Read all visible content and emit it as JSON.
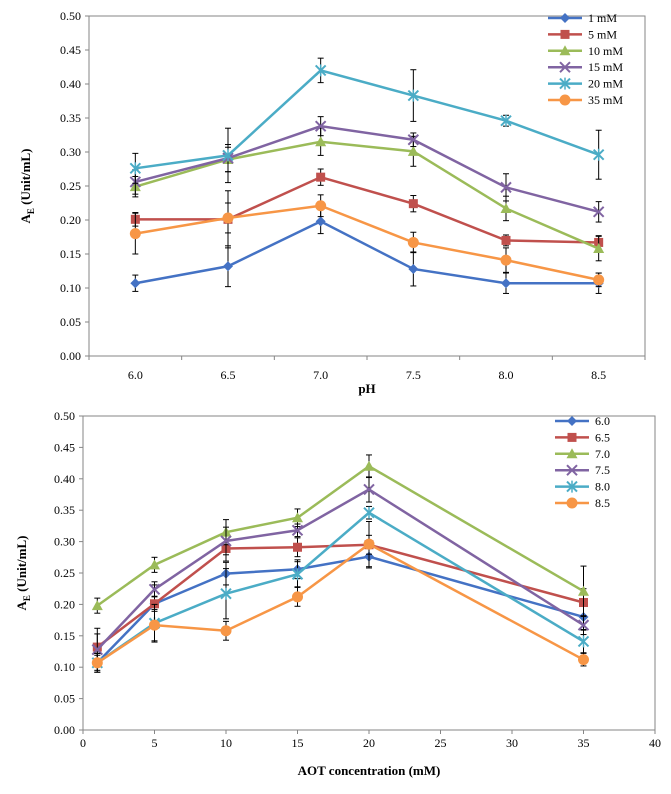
{
  "chart_data": [
    {
      "type": "line",
      "x": [
        6.0,
        6.5,
        7.0,
        7.5,
        8.0,
        8.5
      ],
      "x_tick_labels": [
        "6.0",
        "6.5",
        "7.0",
        "7.5",
        "8.0",
        "8.5"
      ],
      "xlabel": "pH",
      "ylabel_main": "A",
      "ylabel_sub": "E",
      "ylabel_rest": " (Unit/mL)",
      "ylim": [
        0,
        0.5
      ],
      "y_tick_labels": [
        "0.00",
        "0.05",
        "0.10",
        "0.15",
        "0.20",
        "0.25",
        "0.30",
        "0.35",
        "0.40",
        "0.45",
        "0.50"
      ],
      "legend_position": "top-right",
      "grid": false,
      "series": [
        {
          "name": "1 mM",
          "color": "#4472C4",
          "marker": "diamond",
          "values": [
            0.107,
            0.132,
            0.198,
            0.128,
            0.107,
            0.107
          ],
          "errors": [
            0.012,
            0.03,
            0.018,
            0.025,
            0.015,
            0.015
          ]
        },
        {
          "name": "5 mM",
          "color": "#C0504D",
          "marker": "square",
          "values": [
            0.201,
            0.201,
            0.263,
            0.224,
            0.17,
            0.167
          ],
          "errors": [
            0.01,
            0.042,
            0.012,
            0.012,
            0.008,
            0.01
          ]
        },
        {
          "name": "10 mM",
          "color": "#9BBB59",
          "marker": "triangle",
          "values": [
            0.249,
            0.289,
            0.315,
            0.301,
            0.217,
            0.158
          ],
          "errors": [
            0.015,
            0.018,
            0.02,
            0.022,
            0.018,
            0.018
          ]
        },
        {
          "name": "15 mM",
          "color": "#8064A2",
          "marker": "x",
          "values": [
            0.256,
            0.291,
            0.338,
            0.318,
            0.248,
            0.212
          ],
          "errors": [
            0.018,
            0.02,
            0.014,
            0.01,
            0.02,
            0.015
          ]
        },
        {
          "name": "20 mM",
          "color": "#4BACC6",
          "marker": "star",
          "values": [
            0.276,
            0.295,
            0.42,
            0.383,
            0.346,
            0.296
          ],
          "errors": [
            0.022,
            0.04,
            0.018,
            0.038,
            0.008,
            0.036
          ]
        },
        {
          "name": "35 mM",
          "color": "#F79646",
          "marker": "circle",
          "values": [
            0.18,
            0.203,
            0.221,
            0.167,
            0.141,
            0.112
          ],
          "errors": [
            0.03,
            0.022,
            0.016,
            0.015,
            0.018,
            0.01
          ]
        }
      ]
    },
    {
      "type": "line",
      "x": [
        1,
        5,
        10,
        15,
        20,
        35
      ],
      "xlim": [
        0,
        40
      ],
      "x_tick_labels": [
        "0",
        "5",
        "10",
        "15",
        "20",
        "25",
        "30",
        "35",
        "40"
      ],
      "xlabel": "AOT concentration (mM)",
      "ylabel_main": "A",
      "ylabel_sub": "E",
      "ylabel_rest": " (Unit/mL)",
      "ylim": [
        0,
        0.5
      ],
      "y_tick_labels": [
        "0.00",
        "0.05",
        "0.10",
        "0.15",
        "0.20",
        "0.25",
        "0.30",
        "0.35",
        "0.40",
        "0.45",
        "0.50"
      ],
      "legend_position": "top-right",
      "grid": false,
      "series": [
        {
          "name": "6.0",
          "color": "#4472C4",
          "marker": "diamond",
          "values": [
            0.107,
            0.201,
            0.249,
            0.256,
            0.276,
            0.18
          ],
          "errors": [
            0.012,
            0.012,
            0.018,
            0.015,
            0.018,
            0.02
          ]
        },
        {
          "name": "6.5",
          "color": "#C0504D",
          "marker": "square",
          "values": [
            0.132,
            0.201,
            0.289,
            0.291,
            0.295,
            0.203
          ],
          "errors": [
            0.03,
            0.03,
            0.02,
            0.015,
            0.015,
            0.022
          ]
        },
        {
          "name": "7.0",
          "color": "#9BBB59",
          "marker": "triangle",
          "values": [
            0.198,
            0.263,
            0.315,
            0.338,
            0.42,
            0.221
          ],
          "errors": [
            0.012,
            0.012,
            0.02,
            0.014,
            0.018,
            0.04
          ]
        },
        {
          "name": "7.5",
          "color": "#8064A2",
          "marker": "x",
          "values": [
            0.128,
            0.224,
            0.301,
            0.318,
            0.383,
            0.167
          ],
          "errors": [
            0.025,
            0.012,
            0.022,
            0.01,
            0.02,
            0.015
          ]
        },
        {
          "name": "8.0",
          "color": "#4BACC6",
          "marker": "star",
          "values": [
            0.107,
            0.17,
            0.217,
            0.248,
            0.346,
            0.141
          ],
          "errors": [
            0.015,
            0.03,
            0.04,
            0.02,
            0.01,
            0.018
          ]
        },
        {
          "name": "8.5",
          "color": "#F79646",
          "marker": "circle",
          "values": [
            0.107,
            0.167,
            0.158,
            0.212,
            0.296,
            0.112
          ],
          "errors": [
            0.015,
            0.025,
            0.015,
            0.015,
            0.036,
            0.01
          ]
        }
      ]
    }
  ]
}
